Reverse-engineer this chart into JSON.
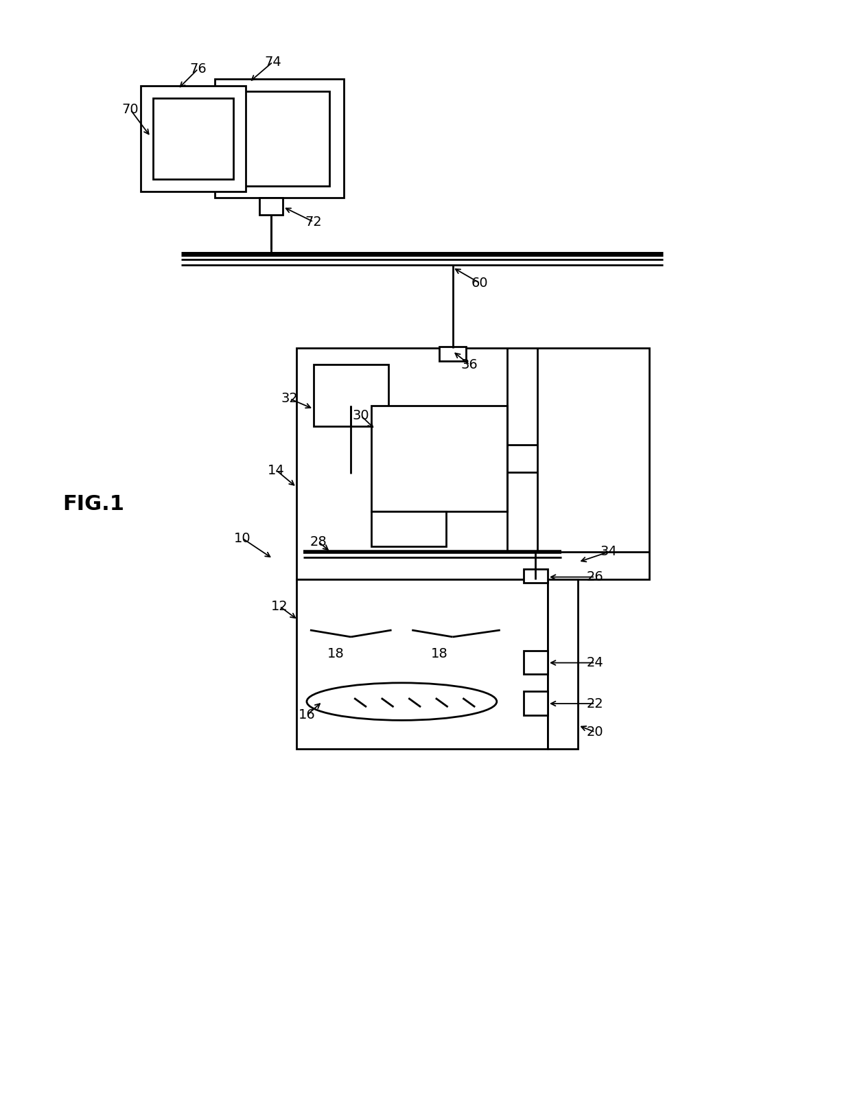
{
  "bg_color": "#ffffff",
  "lc": "#000000",
  "lw": 2.0,
  "fs": 14
}
